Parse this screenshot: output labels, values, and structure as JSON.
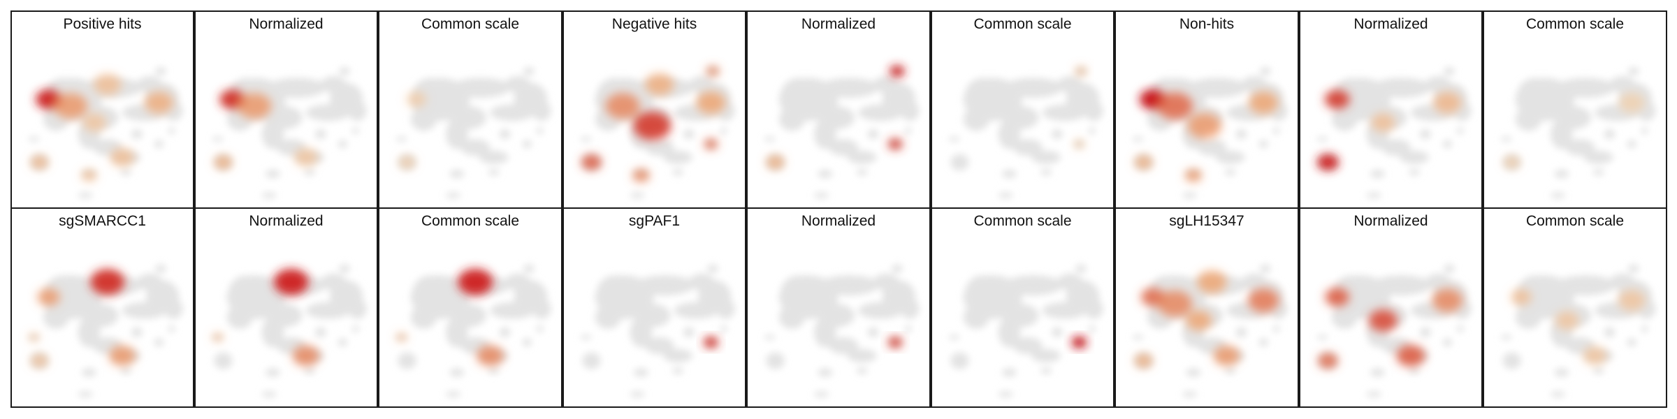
{
  "figure": {
    "title": "",
    "rows": [
      {
        "panels": [
          {
            "title": "Positive hits",
            "scale": "own",
            "hotspots": [
              {
                "at": "upper-left blob",
                "intensity": 0.95
              },
              {
                "at": "upper-left body",
                "intensity": 0.55
              },
              {
                "at": "top band",
                "intensity": 0.35
              },
              {
                "at": "right ring",
                "intensity": 0.45
              },
              {
                "at": "middle",
                "intensity": 0.3
              },
              {
                "at": "lower-left cluster",
                "intensity": 0.4
              },
              {
                "at": "bottom small cluster",
                "intensity": 0.35
              },
              {
                "at": "lower right tail",
                "intensity": 0.35
              }
            ]
          },
          {
            "title": "Normalized",
            "scale": "normalized",
            "hotspots": [
              {
                "at": "upper-left blob",
                "intensity": 0.9
              },
              {
                "at": "upper-left body",
                "intensity": 0.55
              },
              {
                "at": "lower-left cluster",
                "intensity": 0.45
              },
              {
                "at": "lower right tail",
                "intensity": 0.3
              }
            ]
          },
          {
            "title": "Common scale",
            "scale": "common",
            "hotspots": [
              {
                "at": "upper-left blob",
                "intensity": 0.25
              },
              {
                "at": "lower-left cluster",
                "intensity": 0.25
              }
            ]
          }
        ]
      },
      {
        "panels": [
          {
            "title": "Negative hits",
            "scale": "own",
            "hotspots": [
              {
                "at": "upper-left body",
                "intensity": 0.6
              },
              {
                "at": "center ridge",
                "intensity": 0.85
              },
              {
                "at": "top band",
                "intensity": 0.45
              },
              {
                "at": "right ring",
                "intensity": 0.5
              },
              {
                "at": "top-right isolated",
                "intensity": 0.6
              },
              {
                "at": "lower-left cluster",
                "intensity": 0.75
              },
              {
                "at": "right small cluster",
                "intensity": 0.7
              },
              {
                "at": "bottom small cluster",
                "intensity": 0.6
              }
            ]
          },
          {
            "title": "Normalized",
            "scale": "normalized",
            "hotspots": [
              {
                "at": "top-right isolated",
                "intensity": 0.95
              },
              {
                "at": "right small cluster",
                "intensity": 0.85
              },
              {
                "at": "lower-left cluster",
                "intensity": 0.45
              }
            ]
          },
          {
            "title": "Common scale",
            "scale": "common",
            "hotspots": [
              {
                "at": "top-right isolated",
                "intensity": 0.35
              },
              {
                "at": "right small cluster",
                "intensity": 0.25
              }
            ]
          }
        ]
      },
      {
        "panels": [
          {
            "title": "Non-hits",
            "scale": "own",
            "hotspots": [
              {
                "at": "upper-left blob",
                "intensity": 1.0
              },
              {
                "at": "upper-left body",
                "intensity": 0.7
              },
              {
                "at": "center ridge",
                "intensity": 0.55
              },
              {
                "at": "right ring",
                "intensity": 0.5
              },
              {
                "at": "lower-left cluster",
                "intensity": 0.45
              },
              {
                "at": "bottom small cluster",
                "intensity": 0.55
              }
            ]
          },
          {
            "title": "Normalized",
            "scale": "normalized",
            "hotspots": [
              {
                "at": "upper-left blob",
                "intensity": 0.85
              },
              {
                "at": "lower-left cluster",
                "intensity": 0.95
              },
              {
                "at": "right ring",
                "intensity": 0.4
              },
              {
                "at": "middle",
                "intensity": 0.35
              }
            ]
          },
          {
            "title": "Common scale",
            "scale": "common",
            "hotspots": [
              {
                "at": "lower-left cluster",
                "intensity": 0.25
              },
              {
                "at": "right ring",
                "intensity": 0.2
              }
            ]
          }
        ]
      },
      {
        "panels": [
          {
            "title": "sgSMARCC1",
            "scale": "own",
            "hotspots": [
              {
                "at": "top band",
                "intensity": 0.9
              },
              {
                "at": "upper-left blob",
                "intensity": 0.55
              },
              {
                "at": "lower right tail",
                "intensity": 0.55
              },
              {
                "at": "lower-left cluster",
                "intensity": 0.35
              },
              {
                "at": "left small",
                "intensity": 0.35
              }
            ]
          },
          {
            "title": "Normalized",
            "scale": "normalized",
            "hotspots": [
              {
                "at": "top band",
                "intensity": 0.95
              },
              {
                "at": "lower right tail",
                "intensity": 0.6
              },
              {
                "at": "left small",
                "intensity": 0.4
              }
            ]
          },
          {
            "title": "Common scale",
            "scale": "common",
            "hotspots": [
              {
                "at": "top band",
                "intensity": 0.95
              },
              {
                "at": "lower right tail",
                "intensity": 0.6
              },
              {
                "at": "left small",
                "intensity": 0.4
              }
            ]
          }
        ]
      },
      {
        "panels": [
          {
            "title": "sgPAF1",
            "scale": "own",
            "hotspots": [
              {
                "at": "right small cluster",
                "intensity": 0.9
              }
            ]
          },
          {
            "title": "Normalized",
            "scale": "normalized",
            "hotspots": [
              {
                "at": "right small cluster",
                "intensity": 0.85
              }
            ]
          },
          {
            "title": "Common scale",
            "scale": "common",
            "hotspots": [
              {
                "at": "right small cluster",
                "intensity": 1.0
              }
            ]
          }
        ]
      },
      {
        "panels": [
          {
            "title": "sgLH15347",
            "scale": "own",
            "hotspots": [
              {
                "at": "upper-left blob",
                "intensity": 0.7
              },
              {
                "at": "upper-left body",
                "intensity": 0.6
              },
              {
                "at": "top band",
                "intensity": 0.5
              },
              {
                "at": "right ring",
                "intensity": 0.65
              },
              {
                "at": "middle",
                "intensity": 0.5
              },
              {
                "at": "lower right tail",
                "intensity": 0.55
              },
              {
                "at": "lower-left cluster",
                "intensity": 0.45
              }
            ]
          },
          {
            "title": "Normalized",
            "scale": "normalized",
            "hotspots": [
              {
                "at": "upper-left blob",
                "intensity": 0.75
              },
              {
                "at": "middle",
                "intensity": 0.8
              },
              {
                "at": "right ring",
                "intensity": 0.6
              },
              {
                "at": "lower right tail",
                "intensity": 0.75
              },
              {
                "at": "lower-left cluster",
                "intensity": 0.7
              }
            ]
          },
          {
            "title": "Common scale",
            "scale": "common",
            "hotspots": [
              {
                "at": "upper-left blob",
                "intensity": 0.35
              },
              {
                "at": "right ring",
                "intensity": 0.3
              },
              {
                "at": "middle",
                "intensity": 0.3
              },
              {
                "at": "lower right tail",
                "intensity": 0.3
              }
            ]
          }
        ]
      }
    ]
  },
  "colors": {
    "background_cells": "#e3e3e3",
    "density_low": "#fbe3b8",
    "density_mid": "#ef9a5f",
    "density_high": "#c9141c",
    "frame": "#1a1a1a"
  }
}
